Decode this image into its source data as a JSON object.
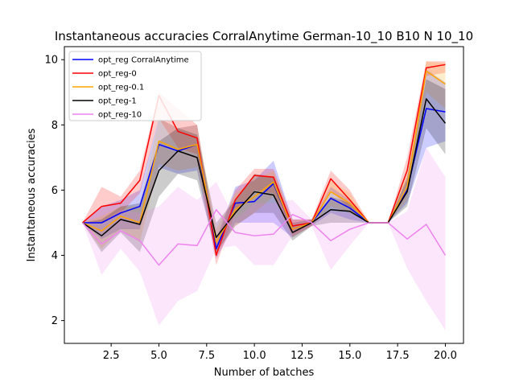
{
  "chart_data": {
    "type": "line",
    "title": "Instantaneous accuracies CorralAnytime German-10_10 B10 N 10_10",
    "xlabel": "Number of batches",
    "ylabel": "Instantaneous accuracies",
    "xlim": [
      0.05,
      20.95
    ],
    "ylim": [
      1.3,
      10.4
    ],
    "xticks": [
      2.5,
      5.0,
      7.5,
      10.0,
      12.5,
      15.0,
      17.5,
      20.0
    ],
    "xtick_labels": [
      "2.5",
      "5.0",
      "7.5",
      "10.0",
      "12.5",
      "15.0",
      "17.5",
      "20.0"
    ],
    "yticks": [
      2,
      4,
      6,
      8,
      10
    ],
    "ytick_labels": [
      "2",
      "4",
      "6",
      "8",
      "10"
    ],
    "grid": false,
    "legend_position": "upper-left",
    "x": [
      1,
      2,
      3,
      4,
      5,
      6,
      7,
      8,
      9,
      10,
      11,
      12,
      13,
      14,
      15,
      16,
      17,
      18,
      19,
      20
    ],
    "series": [
      {
        "name": "opt_reg CorralAnytime",
        "color": "#0000ff",
        "values": [
          5.0,
          5.0,
          5.3,
          5.5,
          7.4,
          7.2,
          7.4,
          4.2,
          5.6,
          5.65,
          6.2,
          4.8,
          5.0,
          5.75,
          5.45,
          5.0,
          5.0,
          6.0,
          8.5,
          8.4
        ],
        "lower": [
          5.0,
          4.5,
          4.8,
          4.8,
          6.7,
          6.5,
          6.6,
          3.9,
          5.0,
          5.0,
          5.0,
          4.55,
          4.9,
          5.3,
          5.1,
          5.0,
          5.0,
          5.6,
          7.3,
          7.5
        ],
        "upper": [
          5.0,
          5.5,
          5.7,
          6.0,
          8.2,
          7.9,
          8.0,
          4.5,
          6.1,
          6.3,
          6.9,
          5.1,
          5.1,
          6.1,
          5.7,
          5.0,
          5.0,
          6.3,
          9.7,
          9.3
        ]
      },
      {
        "name": "opt_reg-0",
        "color": "#ff0000",
        "values": [
          5.0,
          5.5,
          5.6,
          6.3,
          8.9,
          7.8,
          7.6,
          4.0,
          5.7,
          6.45,
          6.4,
          4.9,
          5.0,
          6.35,
          5.7,
          5.0,
          5.0,
          6.6,
          9.75,
          9.85
        ],
        "lower": [
          5.0,
          5.0,
          5.3,
          5.9,
          8.2,
          7.3,
          7.1,
          3.7,
          5.3,
          6.0,
          5.9,
          4.6,
          4.9,
          6.0,
          5.4,
          5.0,
          5.0,
          6.2,
          9.5,
          9.6
        ],
        "upper": [
          5.0,
          6.1,
          5.8,
          6.6,
          9.0,
          8.5,
          8.0,
          4.4,
          6.0,
          6.65,
          6.65,
          5.1,
          5.1,
          6.6,
          6.0,
          5.0,
          5.0,
          7.0,
          9.95,
          9.95
        ]
      },
      {
        "name": "opt_reg-0.1",
        "color": "#ffa500",
        "values": [
          5.0,
          4.75,
          5.2,
          5.0,
          7.5,
          7.25,
          7.4,
          4.4,
          5.4,
          5.8,
          6.25,
          4.8,
          5.0,
          5.95,
          5.6,
          5.0,
          5.0,
          6.1,
          9.65,
          9.25
        ],
        "lower": [
          5.0,
          4.2,
          4.8,
          4.4,
          6.8,
          6.6,
          6.7,
          4.0,
          4.9,
          5.3,
          5.8,
          4.55,
          4.9,
          5.5,
          5.3,
          5.0,
          5.0,
          5.7,
          9.0,
          8.5
        ],
        "upper": [
          5.0,
          5.2,
          5.5,
          5.5,
          8.2,
          7.9,
          8.0,
          4.8,
          5.9,
          6.3,
          6.6,
          5.1,
          5.1,
          6.3,
          5.9,
          5.0,
          5.0,
          6.5,
          9.95,
          9.9
        ]
      },
      {
        "name": "opt_reg-1",
        "color": "#000000",
        "values": [
          5.0,
          4.6,
          5.1,
          4.95,
          6.6,
          7.2,
          7.0,
          4.55,
          5.3,
          5.95,
          5.85,
          4.7,
          5.0,
          5.4,
          5.35,
          5.0,
          5.0,
          5.95,
          8.8,
          8.05
        ],
        "lower": [
          5.0,
          4.1,
          4.7,
          4.1,
          5.8,
          6.5,
          6.3,
          4.1,
          4.9,
          5.3,
          5.3,
          4.45,
          4.9,
          5.0,
          5.0,
          5.0,
          5.0,
          5.5,
          7.9,
          7.1
        ],
        "upper": [
          5.0,
          5.1,
          5.5,
          5.6,
          7.5,
          7.9,
          7.7,
          5.0,
          5.7,
          6.5,
          6.4,
          5.0,
          5.1,
          5.8,
          5.6,
          5.0,
          5.0,
          6.4,
          9.4,
          9.1
        ]
      },
      {
        "name": "opt_reg-10",
        "color": "#ee82ee",
        "values": [
          5.0,
          4.35,
          4.75,
          4.45,
          3.7,
          4.35,
          4.3,
          5.4,
          4.7,
          4.6,
          4.65,
          5.25,
          5.0,
          4.45,
          4.8,
          5.0,
          5.0,
          4.5,
          4.95,
          4.0
        ],
        "lower": [
          5.0,
          3.4,
          4.2,
          3.5,
          1.85,
          2.6,
          2.9,
          4.2,
          4.3,
          3.7,
          3.7,
          4.6,
          4.9,
          3.55,
          4.3,
          5.0,
          5.0,
          3.6,
          2.6,
          1.7
        ],
        "upper": [
          5.0,
          5.0,
          5.4,
          5.3,
          5.5,
          6.1,
          5.7,
          6.25,
          5.1,
          5.6,
          5.6,
          5.7,
          5.1,
          5.35,
          5.3,
          5.0,
          5.0,
          5.35,
          7.3,
          6.4
        ]
      }
    ]
  }
}
